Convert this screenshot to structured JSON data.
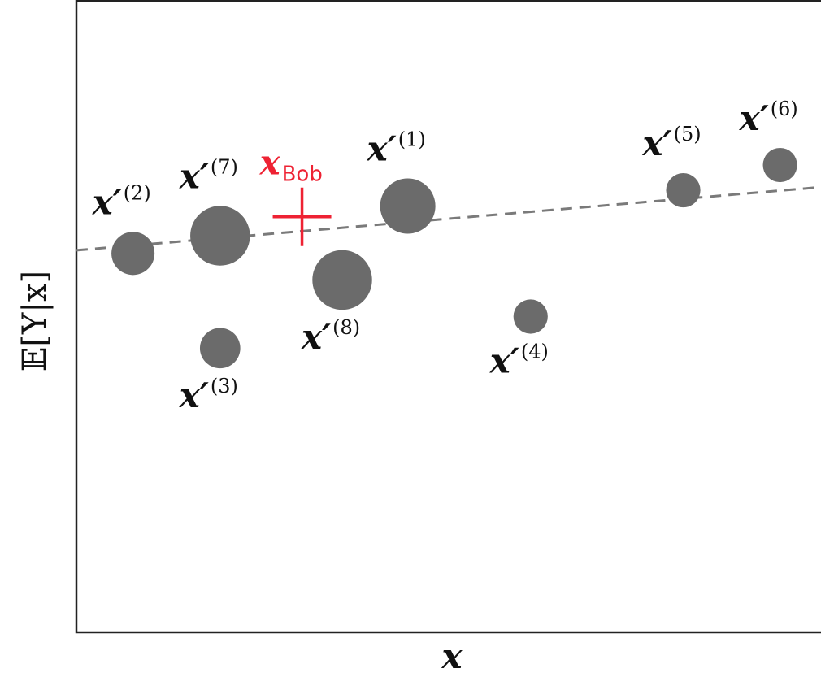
{
  "chart_data": {
    "type": "scatter",
    "xlabel": "x",
    "ylabel": "𝔼[Y|x]",
    "grid": false,
    "legend": "none",
    "colors": {
      "points": "#6b6b6b",
      "query": "#ee2233",
      "trend": "#7a7a7a"
    },
    "trend_line": {
      "style": "dashed",
      "x": [
        0.0,
        1.0
      ],
      "y": [
        0.605,
        0.705
      ]
    },
    "points": [
      {
        "id": "1",
        "label": "x′(1)",
        "sup": "(1)",
        "x": 0.445,
        "y": 0.675,
        "weight": 1.0,
        "label_pos": "above"
      },
      {
        "id": "2",
        "label": "x′(2)",
        "sup": "(2)",
        "x": 0.076,
        "y": 0.6,
        "weight": 0.78,
        "label_pos": "above"
      },
      {
        "id": "3",
        "label": "x′(3)",
        "sup": "(3)",
        "x": 0.193,
        "y": 0.45,
        "weight": 0.73,
        "label_pos": "below"
      },
      {
        "id": "4",
        "label": "x′(4)",
        "sup": "(4)",
        "x": 0.61,
        "y": 0.5,
        "weight": 0.62,
        "label_pos": "below"
      },
      {
        "id": "5",
        "label": "x′(5)",
        "sup": "(5)",
        "x": 0.815,
        "y": 0.7,
        "weight": 0.62,
        "label_pos": "above"
      },
      {
        "id": "6",
        "label": "x′(6)",
        "sup": "(6)",
        "x": 0.945,
        "y": 0.74,
        "weight": 0.62,
        "label_pos": "above"
      },
      {
        "id": "7",
        "label": "x′(7)",
        "sup": "(7)",
        "x": 0.193,
        "y": 0.628,
        "weight": 1.08,
        "label_pos": "above"
      },
      {
        "id": "8",
        "label": "x′(8)",
        "sup": "(8)",
        "x": 0.357,
        "y": 0.558,
        "weight": 1.08,
        "label_pos": "below"
      }
    ],
    "query_point": {
      "label": "x",
      "subscript": "Bob",
      "x": 0.303,
      "y": 0.658,
      "marker": "+"
    }
  }
}
